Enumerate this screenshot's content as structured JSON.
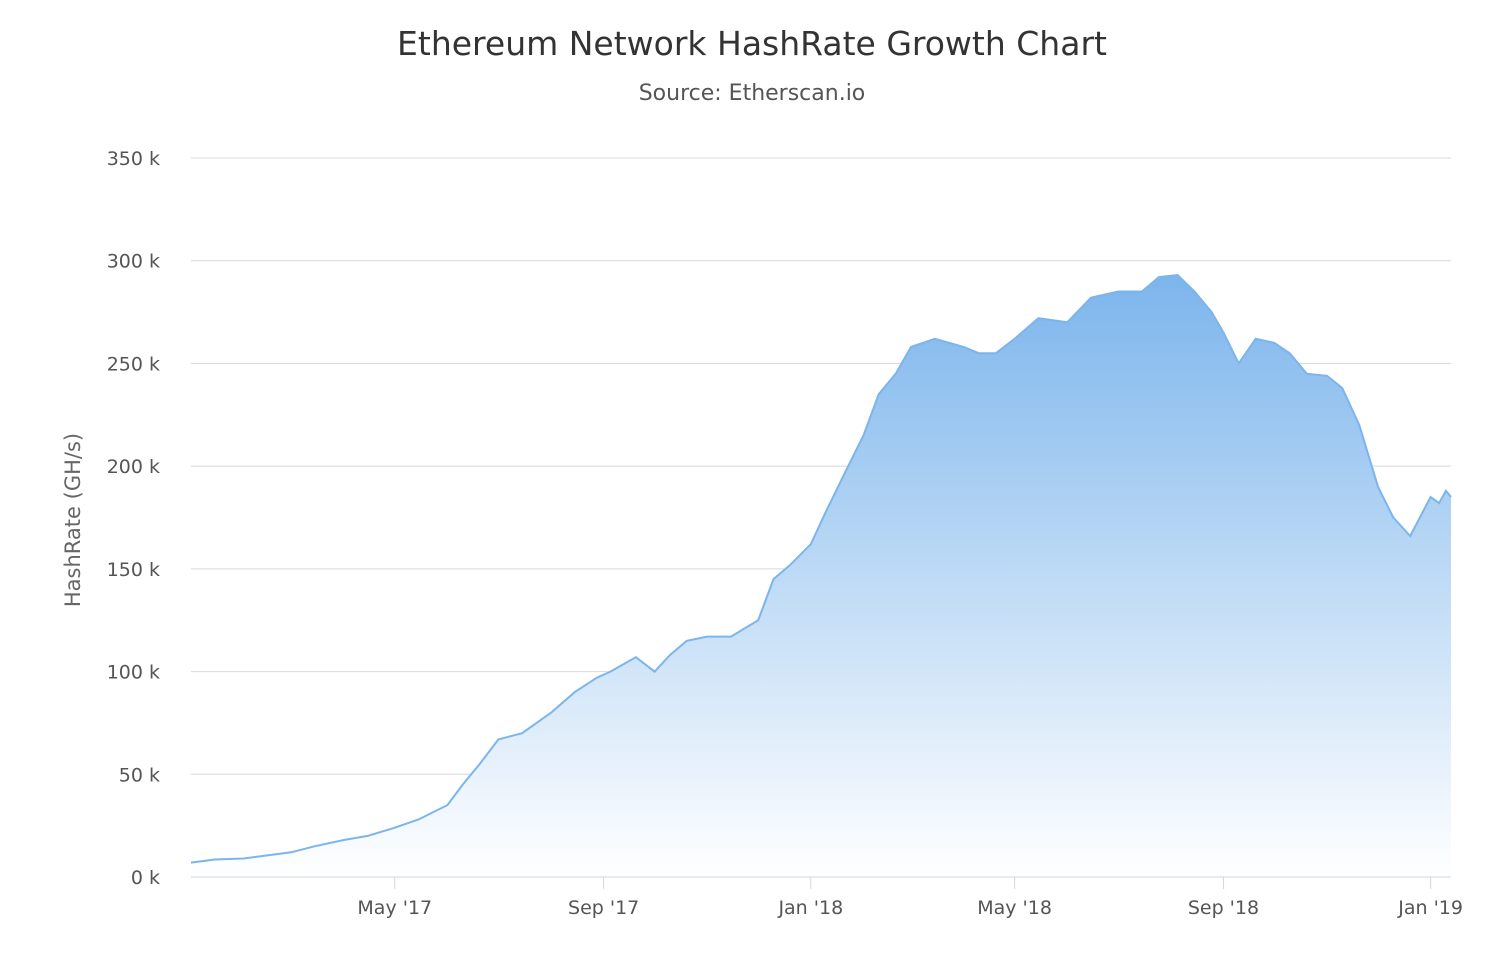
{
  "chart_data": {
    "type": "area",
    "title": "Ethereum Network HashRate Growth Chart",
    "subtitle": "Source: Etherscan.io",
    "xlabel": "",
    "ylabel": "HashRate (GH/s)",
    "ylim": [
      0,
      350000
    ],
    "y_ticks": [
      {
        "value": 0,
        "label": "0 k"
      },
      {
        "value": 50000,
        "label": "50 k"
      },
      {
        "value": 100000,
        "label": "100 k"
      },
      {
        "value": 150000,
        "label": "150 k"
      },
      {
        "value": 200000,
        "label": "200 k"
      },
      {
        "value": 250000,
        "label": "250 k"
      },
      {
        "value": 300000,
        "label": "300 k"
      },
      {
        "value": 350000,
        "label": "350 k"
      }
    ],
    "xlim": [
      "2017-01-01",
      "2019-01-13"
    ],
    "x_ticks": [
      {
        "date": "2017-05-01",
        "label": "May '17"
      },
      {
        "date": "2017-09-01",
        "label": "Sep '17"
      },
      {
        "date": "2018-01-01",
        "label": "Jan '18"
      },
      {
        "date": "2018-05-01",
        "label": "May '18"
      },
      {
        "date": "2018-09-01",
        "label": "Sep '18"
      },
      {
        "date": "2019-01-01",
        "label": "Jan '19"
      }
    ],
    "grid": true,
    "legend": "none",
    "colors": {
      "line": "#7cb5ec",
      "fill_top": "#7cb5ec",
      "fill_bottom": "#ffffff",
      "grid": "#d8d8d8",
      "axis": "#ccd6eb"
    },
    "series": [
      {
        "x": [
          "2017-01-01",
          "2017-01-15",
          "2017-02-01",
          "2017-02-15",
          "2017-03-01",
          "2017-03-15",
          "2017-04-01",
          "2017-04-15",
          "2017-05-01",
          "2017-05-15",
          "2017-06-01",
          "2017-06-10",
          "2017-06-20",
          "2017-07-01",
          "2017-07-15",
          "2017-08-01",
          "2017-08-15",
          "2017-08-28",
          "2017-09-05",
          "2017-09-20",
          "2017-10-01",
          "2017-10-10",
          "2017-10-20",
          "2017-11-01",
          "2017-11-15",
          "2017-12-01",
          "2017-12-10",
          "2017-12-20",
          "2018-01-01",
          "2018-01-10",
          "2018-01-20",
          "2018-02-01",
          "2018-02-10",
          "2018-02-20",
          "2018-03-01",
          "2018-03-15",
          "2018-04-01",
          "2018-04-10",
          "2018-04-20",
          "2018-05-01",
          "2018-05-15",
          "2018-06-01",
          "2018-06-15",
          "2018-07-01",
          "2018-07-15",
          "2018-07-25",
          "2018-08-05",
          "2018-08-15",
          "2018-08-25",
          "2018-09-01",
          "2018-09-10",
          "2018-09-20",
          "2018-10-01",
          "2018-10-10",
          "2018-10-20",
          "2018-11-01",
          "2018-11-10",
          "2018-11-20",
          "2018-12-01",
          "2018-12-10",
          "2018-12-20",
          "2019-01-01",
          "2019-01-06",
          "2019-01-10",
          "2019-01-13"
        ],
        "y": [
          7000,
          8500,
          9000,
          10500,
          12000,
          15000,
          18000,
          20000,
          24000,
          28000,
          35000,
          45000,
          55000,
          67000,
          70000,
          80000,
          90000,
          97000,
          100000,
          107000,
          100000,
          108000,
          115000,
          117000,
          117000,
          125000,
          145000,
          152000,
          162000,
          178000,
          195000,
          215000,
          235000,
          245000,
          258000,
          262000,
          258000,
          255000,
          255000,
          262000,
          272000,
          270000,
          282000,
          285000,
          285000,
          292000,
          293000,
          285000,
          275000,
          265000,
          250000,
          262000,
          260000,
          255000,
          245000,
          244000,
          238000,
          220000,
          190000,
          175000,
          166000,
          185000,
          182000,
          188000,
          185000
        ]
      }
    ]
  }
}
